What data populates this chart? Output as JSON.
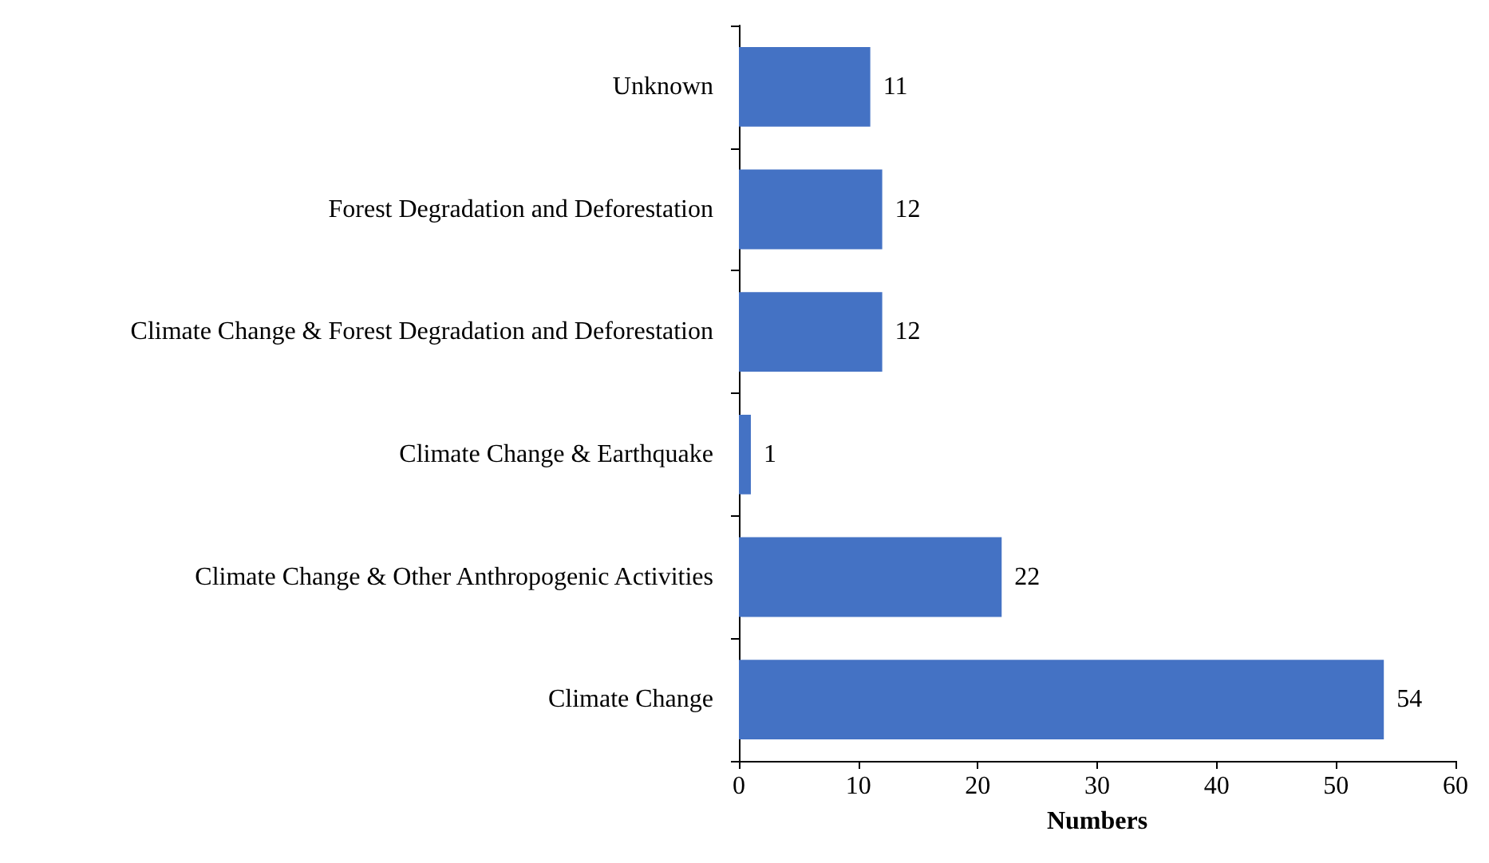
{
  "chart_data": {
    "type": "bar",
    "orientation": "horizontal",
    "xlabel": "Numbers",
    "categories": [
      "Unknown",
      "Forest Degradation and Deforestation",
      "Climate Change & Forest Degradation and Deforestation",
      "Climate Change & Earthquake",
      "Climate Change & Other Anthropogenic Activities",
      "Climate Change"
    ],
    "values": [
      11,
      12,
      12,
      1,
      22,
      54
    ],
    "color": "#4472c4",
    "xlim": [
      0,
      60
    ],
    "xticks": [
      0,
      10,
      20,
      30,
      40,
      50,
      60
    ],
    "grid": false,
    "data_labels": true
  }
}
